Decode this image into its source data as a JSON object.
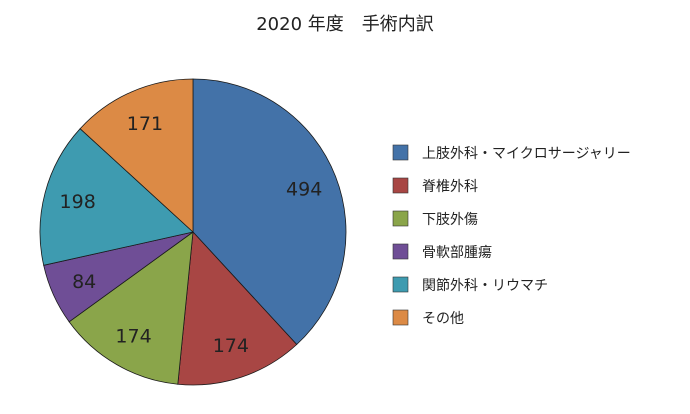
{
  "chart_data": {
    "type": "pie",
    "title": "2020 年度　手術内訳",
    "start_angle_deg": 0,
    "direction": "clockwise",
    "legend_position": "right",
    "slices": [
      {
        "label": "上肢外科・マイクロサージャリー",
        "value": 494,
        "color": "#4372A8"
      },
      {
        "label": "脊椎外科",
        "value": 174,
        "color": "#A84644"
      },
      {
        "label": "下肢外傷",
        "value": 174,
        "color": "#8AA54A"
      },
      {
        "label": "骨軟部腫瘍",
        "value": 84,
        "color": "#6F4E96"
      },
      {
        "label": "関節外科・リウマチ",
        "value": 198,
        "color": "#3E9BB0"
      },
      {
        "label": "その他",
        "value": 171,
        "color": "#DC8A45"
      }
    ]
  }
}
